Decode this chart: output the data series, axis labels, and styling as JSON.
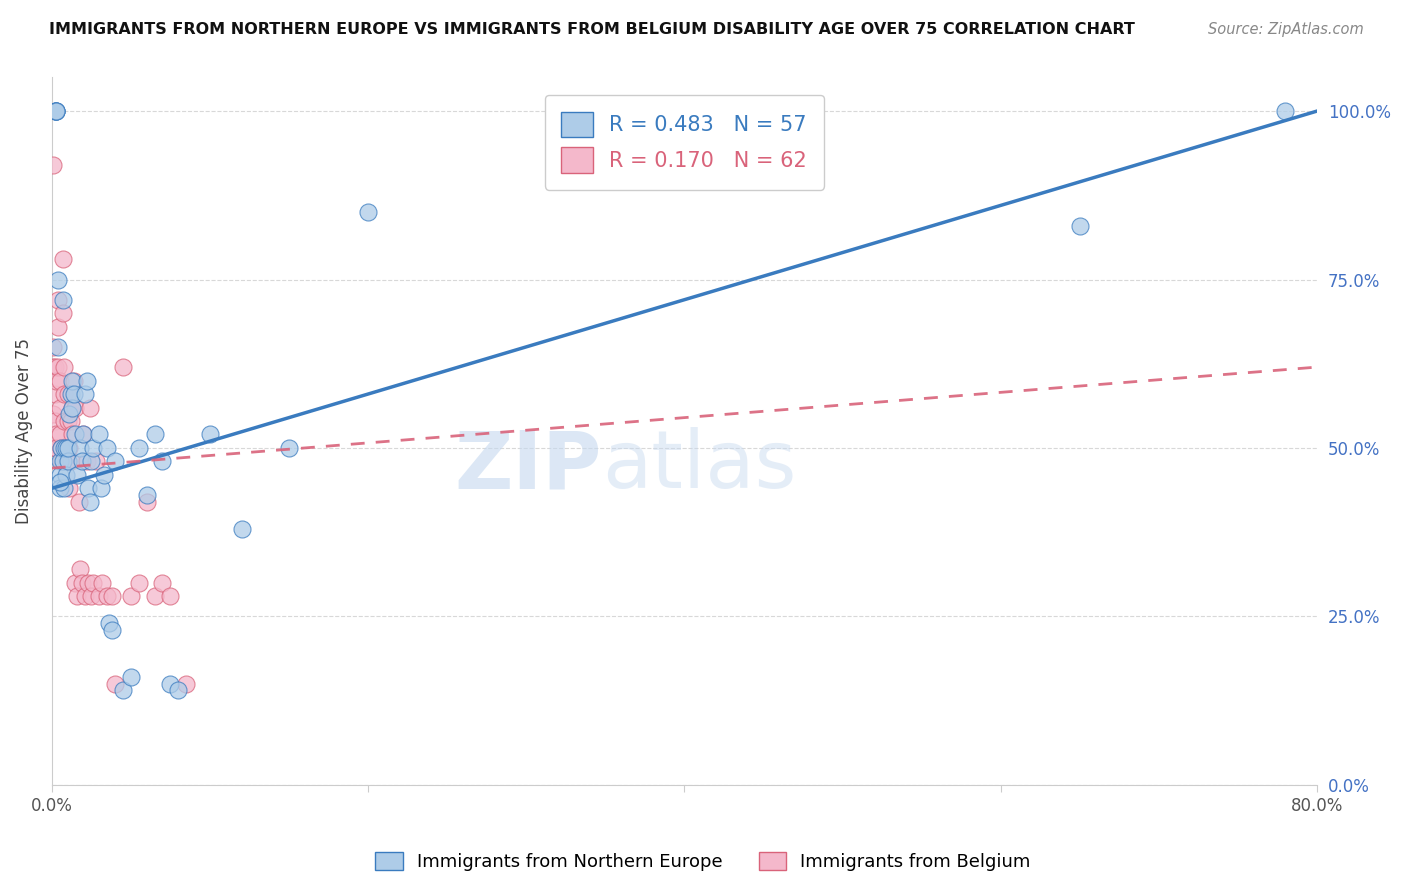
{
  "title": "IMMIGRANTS FROM NORTHERN EUROPE VS IMMIGRANTS FROM BELGIUM DISABILITY AGE OVER 75 CORRELATION CHART",
  "source": "Source: ZipAtlas.com",
  "ylabel": "Disability Age Over 75",
  "blue_label": "Immigrants from Northern Europe",
  "pink_label": "Immigrants from Belgium",
  "blue_R": 0.483,
  "blue_N": 57,
  "pink_R": 0.17,
  "pink_N": 62,
  "blue_color": "#aecce8",
  "pink_color": "#f4b8cb",
  "blue_line_color": "#3a7bbf",
  "pink_line_color": "#d9637a",
  "xlim": [
    0.0,
    0.8
  ],
  "ylim": [
    0.0,
    1.05
  ],
  "blue_points_x": [
    0.002,
    0.003,
    0.003,
    0.005,
    0.005,
    0.005,
    0.006,
    0.007,
    0.007,
    0.008,
    0.008,
    0.009,
    0.009,
    0.01,
    0.01,
    0.011,
    0.012,
    0.013,
    0.013,
    0.014,
    0.015,
    0.016,
    0.018,
    0.019,
    0.02,
    0.021,
    0.022,
    0.023,
    0.024,
    0.025,
    0.026,
    0.03,
    0.031,
    0.033,
    0.035,
    0.036,
    0.038,
    0.04,
    0.045,
    0.05,
    0.055,
    0.06,
    0.065,
    0.07,
    0.075,
    0.08,
    0.1,
    0.12,
    0.15,
    0.2,
    0.65,
    0.78,
    0.003,
    0.003,
    0.004,
    0.004,
    0.005
  ],
  "blue_points_y": [
    1.0,
    1.0,
    1.0,
    0.48,
    0.46,
    0.44,
    0.5,
    0.48,
    0.72,
    0.5,
    0.44,
    0.5,
    0.46,
    0.48,
    0.5,
    0.55,
    0.58,
    0.6,
    0.56,
    0.58,
    0.52,
    0.46,
    0.5,
    0.48,
    0.52,
    0.58,
    0.6,
    0.44,
    0.42,
    0.48,
    0.5,
    0.52,
    0.44,
    0.46,
    0.5,
    0.24,
    0.23,
    0.48,
    0.14,
    0.16,
    0.5,
    0.43,
    0.52,
    0.48,
    0.15,
    0.14,
    0.52,
    0.38,
    0.5,
    0.85,
    0.83,
    1.0,
    1.0,
    1.0,
    0.75,
    0.65,
    0.45
  ],
  "pink_points_x": [
    0.001,
    0.001,
    0.001,
    0.001,
    0.002,
    0.002,
    0.002,
    0.002,
    0.003,
    0.003,
    0.003,
    0.004,
    0.004,
    0.004,
    0.005,
    0.005,
    0.005,
    0.006,
    0.006,
    0.007,
    0.007,
    0.008,
    0.008,
    0.008,
    0.009,
    0.009,
    0.01,
    0.01,
    0.011,
    0.011,
    0.012,
    0.012,
    0.013,
    0.013,
    0.014,
    0.015,
    0.015,
    0.016,
    0.017,
    0.018,
    0.019,
    0.02,
    0.021,
    0.022,
    0.023,
    0.024,
    0.025,
    0.026,
    0.028,
    0.03,
    0.032,
    0.035,
    0.038,
    0.04,
    0.045,
    0.05,
    0.055,
    0.06,
    0.065,
    0.07,
    0.075,
    0.085
  ],
  "pink_points_y": [
    0.92,
    0.65,
    0.62,
    0.55,
    0.62,
    0.58,
    0.54,
    0.5,
    0.6,
    0.52,
    0.5,
    0.72,
    0.68,
    0.62,
    0.6,
    0.56,
    0.52,
    0.5,
    0.48,
    0.78,
    0.7,
    0.62,
    0.58,
    0.54,
    0.5,
    0.48,
    0.58,
    0.54,
    0.5,
    0.44,
    0.54,
    0.48,
    0.56,
    0.52,
    0.6,
    0.56,
    0.3,
    0.28,
    0.42,
    0.32,
    0.3,
    0.52,
    0.28,
    0.48,
    0.3,
    0.56,
    0.28,
    0.3,
    0.48,
    0.28,
    0.3,
    0.28,
    0.28,
    0.15,
    0.62,
    0.28,
    0.3,
    0.42,
    0.28,
    0.3,
    0.28,
    0.15
  ],
  "blue_trend_x0": 0.0,
  "blue_trend_y0": 0.44,
  "blue_trend_x1": 0.8,
  "blue_trend_y1": 1.0,
  "pink_trend_x0": 0.0,
  "pink_trend_y0": 0.47,
  "pink_trend_x1": 0.8,
  "pink_trend_y1": 0.62,
  "watermark_zip": "ZIP",
  "watermark_atlas": "atlas",
  "right_yticklabels": [
    "0.0%",
    "25.0%",
    "50.0%",
    "75.0%",
    "100.0%"
  ],
  "background_color": "#ffffff",
  "grid_color": "#d8d8d8"
}
